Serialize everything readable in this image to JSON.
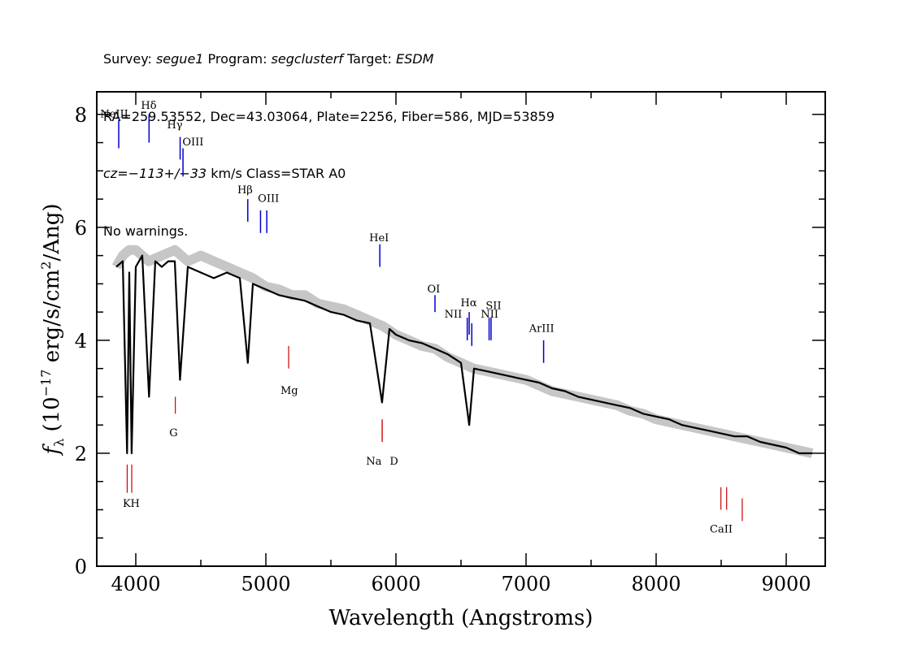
{
  "header": {
    "line1": {
      "survey_label": "Survey: ",
      "survey": "segue1",
      "program_label": " Program: ",
      "program": "segclusterf",
      "target_label": " Target: ",
      "target": "ESDM"
    },
    "line2": "RA=259.53552, Dec=43.03064, Plate=2256, Fiber=586, MJD=53859",
    "line3": {
      "cz": "cz=−113+/−33",
      "rest": " km/s Class=STAR A0"
    },
    "line4": "No warnings."
  },
  "chart_data": {
    "type": "line",
    "xlabel": "Wavelength (Angstroms)",
    "ylabel_parts": {
      "f": "f",
      "sub": "λ",
      "pre": " (10",
      "exp": "−17",
      "mid": " erg/s/cm",
      "exp2": "2",
      "post": "/Ang)"
    },
    "xlim": [
      3700,
      9300
    ],
    "ylim": [
      0,
      8.4
    ],
    "xticks": [
      4000,
      5000,
      6000,
      7000,
      8000,
      9000
    ],
    "yticks": [
      0,
      2,
      4,
      6,
      8
    ],
    "xtick_labels": [
      "4000",
      "5000",
      "6000",
      "7000",
      "8000",
      "9000"
    ],
    "ytick_labels": [
      "0",
      "2",
      "4",
      "6",
      "8"
    ],
    "series": [
      {
        "role": "flux",
        "color": "#c0c0c0",
        "x": [
          3850,
          3900,
          3950,
          4000,
          4100,
          4200,
          4300,
          4400,
          4500,
          4600,
          4700,
          4800,
          4900,
          5000,
          5100,
          5200,
          5300,
          5400,
          5500,
          5600,
          5700,
          5800,
          5900,
          6000,
          6100,
          6200,
          6300,
          6400,
          6500,
          6600,
          6700,
          6800,
          6900,
          7000,
          7100,
          7200,
          7300,
          7400,
          7500,
          7600,
          7700,
          7800,
          7900,
          8000,
          8100,
          8200,
          8300,
          8400,
          8500,
          8600,
          8700,
          8800,
          8900,
          9000,
          9100,
          9200
        ],
        "y": [
          5.3,
          5.5,
          5.6,
          5.6,
          5.4,
          5.5,
          5.6,
          5.4,
          5.5,
          5.4,
          5.3,
          5.2,
          5.1,
          4.95,
          4.9,
          4.8,
          4.8,
          4.65,
          4.6,
          4.55,
          4.45,
          4.35,
          4.25,
          4.1,
          4.0,
          3.9,
          3.85,
          3.7,
          3.6,
          3.5,
          3.45,
          3.4,
          3.35,
          3.3,
          3.2,
          3.1,
          3.05,
          3.0,
          2.95,
          2.9,
          2.85,
          2.75,
          2.7,
          2.6,
          2.55,
          2.5,
          2.45,
          2.4,
          2.35,
          2.3,
          2.25,
          2.2,
          2.15,
          2.1,
          2.05,
          2.0
        ]
      },
      {
        "role": "model",
        "color": "#000000",
        "x": [
          3850,
          3900,
          3933,
          3950,
          3968,
          4000,
          4050,
          4102,
          4150,
          4200,
          4250,
          4300,
          4340,
          4400,
          4500,
          4600,
          4700,
          4800,
          4861,
          4900,
          5000,
          5100,
          5200,
          5300,
          5400,
          5500,
          5600,
          5700,
          5800,
          5893,
          5950,
          6000,
          6100,
          6200,
          6300,
          6400,
          6500,
          6563,
          6600,
          6700,
          6800,
          6900,
          7000,
          7100,
          7200,
          7300,
          7400,
          7500,
          7600,
          7700,
          7800,
          7900,
          8000,
          8100,
          8200,
          8300,
          8400,
          8500,
          8600,
          8700,
          8800,
          8900,
          9000,
          9100,
          9200
        ],
        "y": [
          5.3,
          5.4,
          2.0,
          5.2,
          2.0,
          5.3,
          5.5,
          3.0,
          5.4,
          5.3,
          5.4,
          5.4,
          3.3,
          5.3,
          5.2,
          5.1,
          5.2,
          5.1,
          3.6,
          5.0,
          4.9,
          4.8,
          4.75,
          4.7,
          4.6,
          4.5,
          4.45,
          4.35,
          4.3,
          2.9,
          4.2,
          4.1,
          4.0,
          3.95,
          3.85,
          3.75,
          3.6,
          2.5,
          3.5,
          3.45,
          3.4,
          3.35,
          3.3,
          3.25,
          3.15,
          3.1,
          3.0,
          2.95,
          2.9,
          2.85,
          2.8,
          2.7,
          2.65,
          2.6,
          2.5,
          2.45,
          2.4,
          2.35,
          2.3,
          2.3,
          2.2,
          2.15,
          2.1,
          2.0,
          2.0
        ]
      }
    ],
    "emission_lines": [
      {
        "label": "NeIII",
        "x": 3869,
        "y1": 7.4,
        "y2": 7.9
      },
      {
        "label": "Hδ",
        "x": 4102,
        "y1": 7.5,
        "y2": 8.0
      },
      {
        "label": "Hγ",
        "x": 4341,
        "y1": 7.2,
        "y2": 7.6
      },
      {
        "label": "OIII",
        "x": 4363,
        "y1": 6.9,
        "y2": 7.4
      },
      {
        "label": "Hβ",
        "x": 4861,
        "y1": 6.1,
        "y2": 6.5
      },
      {
        "label": "OIII",
        "x": 4959,
        "y1": 5.9,
        "y2": 6.3
      },
      {
        "label": "OIII",
        "x": 5007,
        "y1": 5.9,
        "y2": 6.3
      },
      {
        "label": "HeI",
        "x": 5876,
        "y1": 5.3,
        "y2": 5.7
      },
      {
        "label": "OI",
        "x": 6300,
        "y1": 4.5,
        "y2": 4.8
      },
      {
        "label": "NII",
        "x": 6548,
        "y1": 4.0,
        "y2": 4.4
      },
      {
        "label": "Hα",
        "x": 6563,
        "y1": 4.1,
        "y2": 4.5
      },
      {
        "label": "NII",
        "x": 6583,
        "y1": 3.9,
        "y2": 4.3
      },
      {
        "label": "SII",
        "x": 6716,
        "y1": 4.0,
        "y2": 4.4
      },
      {
        "label": "SII",
        "x": 6731,
        "y1": 4.0,
        "y2": 4.4
      },
      {
        "label": "ArIII",
        "x": 7135,
        "y1": 3.6,
        "y2": 4.0
      }
    ],
    "absorption_lines": [
      {
        "label": "K",
        "x": 3934,
        "y1": 1.3,
        "y2": 1.8
      },
      {
        "label": "H",
        "x": 3969,
        "y1": 1.3,
        "y2": 1.8
      },
      {
        "label": "G",
        "x": 4304,
        "y1": 2.7,
        "y2": 3.0
      },
      {
        "label": "Mg",
        "x": 5175,
        "y1": 3.5,
        "y2": 3.9
      },
      {
        "label": "Na",
        "x": 5894,
        "y1": 2.2,
        "y2": 2.6
      },
      {
        "label": "D",
        "x": 5894,
        "y1": 2.2,
        "y2": 2.6
      },
      {
        "label": "CaII",
        "x": 8498,
        "y1": 1.0,
        "y2": 1.4
      },
      {
        "label": "CaII",
        "x": 8542,
        "y1": 1.0,
        "y2": 1.4
      },
      {
        "label": "CaII",
        "x": 8662,
        "y1": 0.8,
        "y2": 1.2
      }
    ],
    "label_positions": {
      "emission": [
        {
          "text": "NeIII",
          "x": 3835,
          "y": 7.95
        },
        {
          "text": "Hδ",
          "x": 4100,
          "y": 8.1
        },
        {
          "text": "Hγ",
          "x": 4300,
          "y": 7.75
        },
        {
          "text": "OIII",
          "x": 4440,
          "y": 7.45
        },
        {
          "text": "Hβ",
          "x": 4840,
          "y": 6.6
        },
        {
          "text": "OIII",
          "x": 5020,
          "y": 6.45
        },
        {
          "text": "HeI",
          "x": 5870,
          "y": 5.75
        },
        {
          "text": "OI",
          "x": 6290,
          "y": 4.85
        },
        {
          "text": "NII",
          "x": 6440,
          "y": 4.4
        },
        {
          "text": "Hα",
          "x": 6560,
          "y": 4.6
        },
        {
          "text": "NII",
          "x": 6720,
          "y": 4.4
        },
        {
          "text": "SII",
          "x": 6750,
          "y": 4.55
        },
        {
          "text": "ArIII",
          "x": 7120,
          "y": 4.15
        }
      ],
      "absorption": [
        {
          "text": "K",
          "x": 3930,
          "y": 1.05
        },
        {
          "text": "H",
          "x": 3995,
          "y": 1.05
        },
        {
          "text": "G",
          "x": 4290,
          "y": 2.3
        },
        {
          "text": "Mg",
          "x": 5180,
          "y": 3.05
        },
        {
          "text": "Na",
          "x": 5830,
          "y": 1.8
        },
        {
          "text": "D",
          "x": 5985,
          "y": 1.8
        },
        {
          "text": "CaII",
          "x": 8500,
          "y": 0.6
        }
      ]
    },
    "colors": {
      "flux": "#c0c0c0",
      "model": "#000000",
      "emission": "#0000cc",
      "absorption": "#cc0000"
    }
  }
}
